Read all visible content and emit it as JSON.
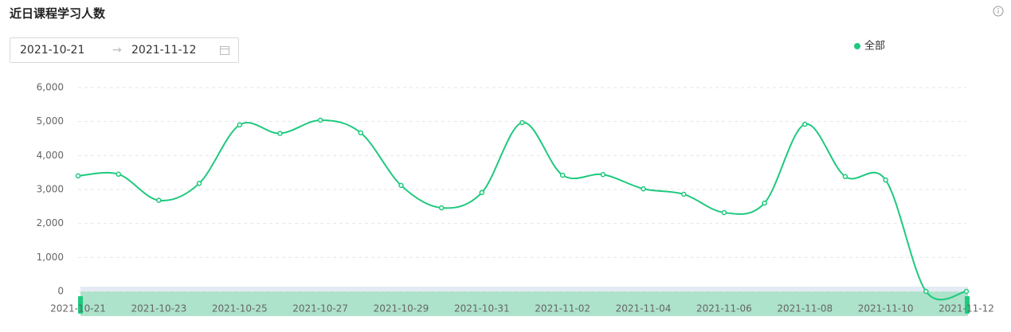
{
  "chart_data": {
    "type": "line",
    "title": "近日课程学习人数",
    "categories": [
      "2021-10-21",
      null,
      "2021-10-23",
      null,
      "2021-10-25",
      null,
      "2021-10-27",
      null,
      "2021-10-29",
      null,
      "2021-10-31",
      null,
      "2021-11-02",
      null,
      "2021-11-04",
      null,
      "2021-11-06",
      null,
      "2021-11-08",
      null,
      "2021-11-10",
      null,
      "2021-11-12"
    ],
    "series": [
      {
        "name": "全部",
        "color": "#1ec97e",
        "values": [
          3400,
          3450,
          2680,
          3180,
          4900,
          4650,
          5040,
          4670,
          3120,
          2460,
          2910,
          4970,
          3420,
          3440,
          3020,
          2860,
          2320,
          2600,
          4920,
          3380,
          3280,
          0,
          0
        ]
      }
    ],
    "ylim": [
      0,
      6000
    ],
    "yticks": [
      {
        "value": 0,
        "label": "0"
      },
      {
        "value": 1000,
        "label": "1,000"
      },
      {
        "value": 2000,
        "label": "2,000"
      },
      {
        "value": 3000,
        "label": "3,000"
      },
      {
        "value": 4000,
        "label": "4,000"
      },
      {
        "value": 5000,
        "label": "5,000"
      },
      {
        "value": 6000,
        "label": "6,000"
      }
    ],
    "grid": true,
    "smooth": true
  },
  "date_picker": {
    "start": "2021-10-21",
    "end": "2021-11-12"
  }
}
